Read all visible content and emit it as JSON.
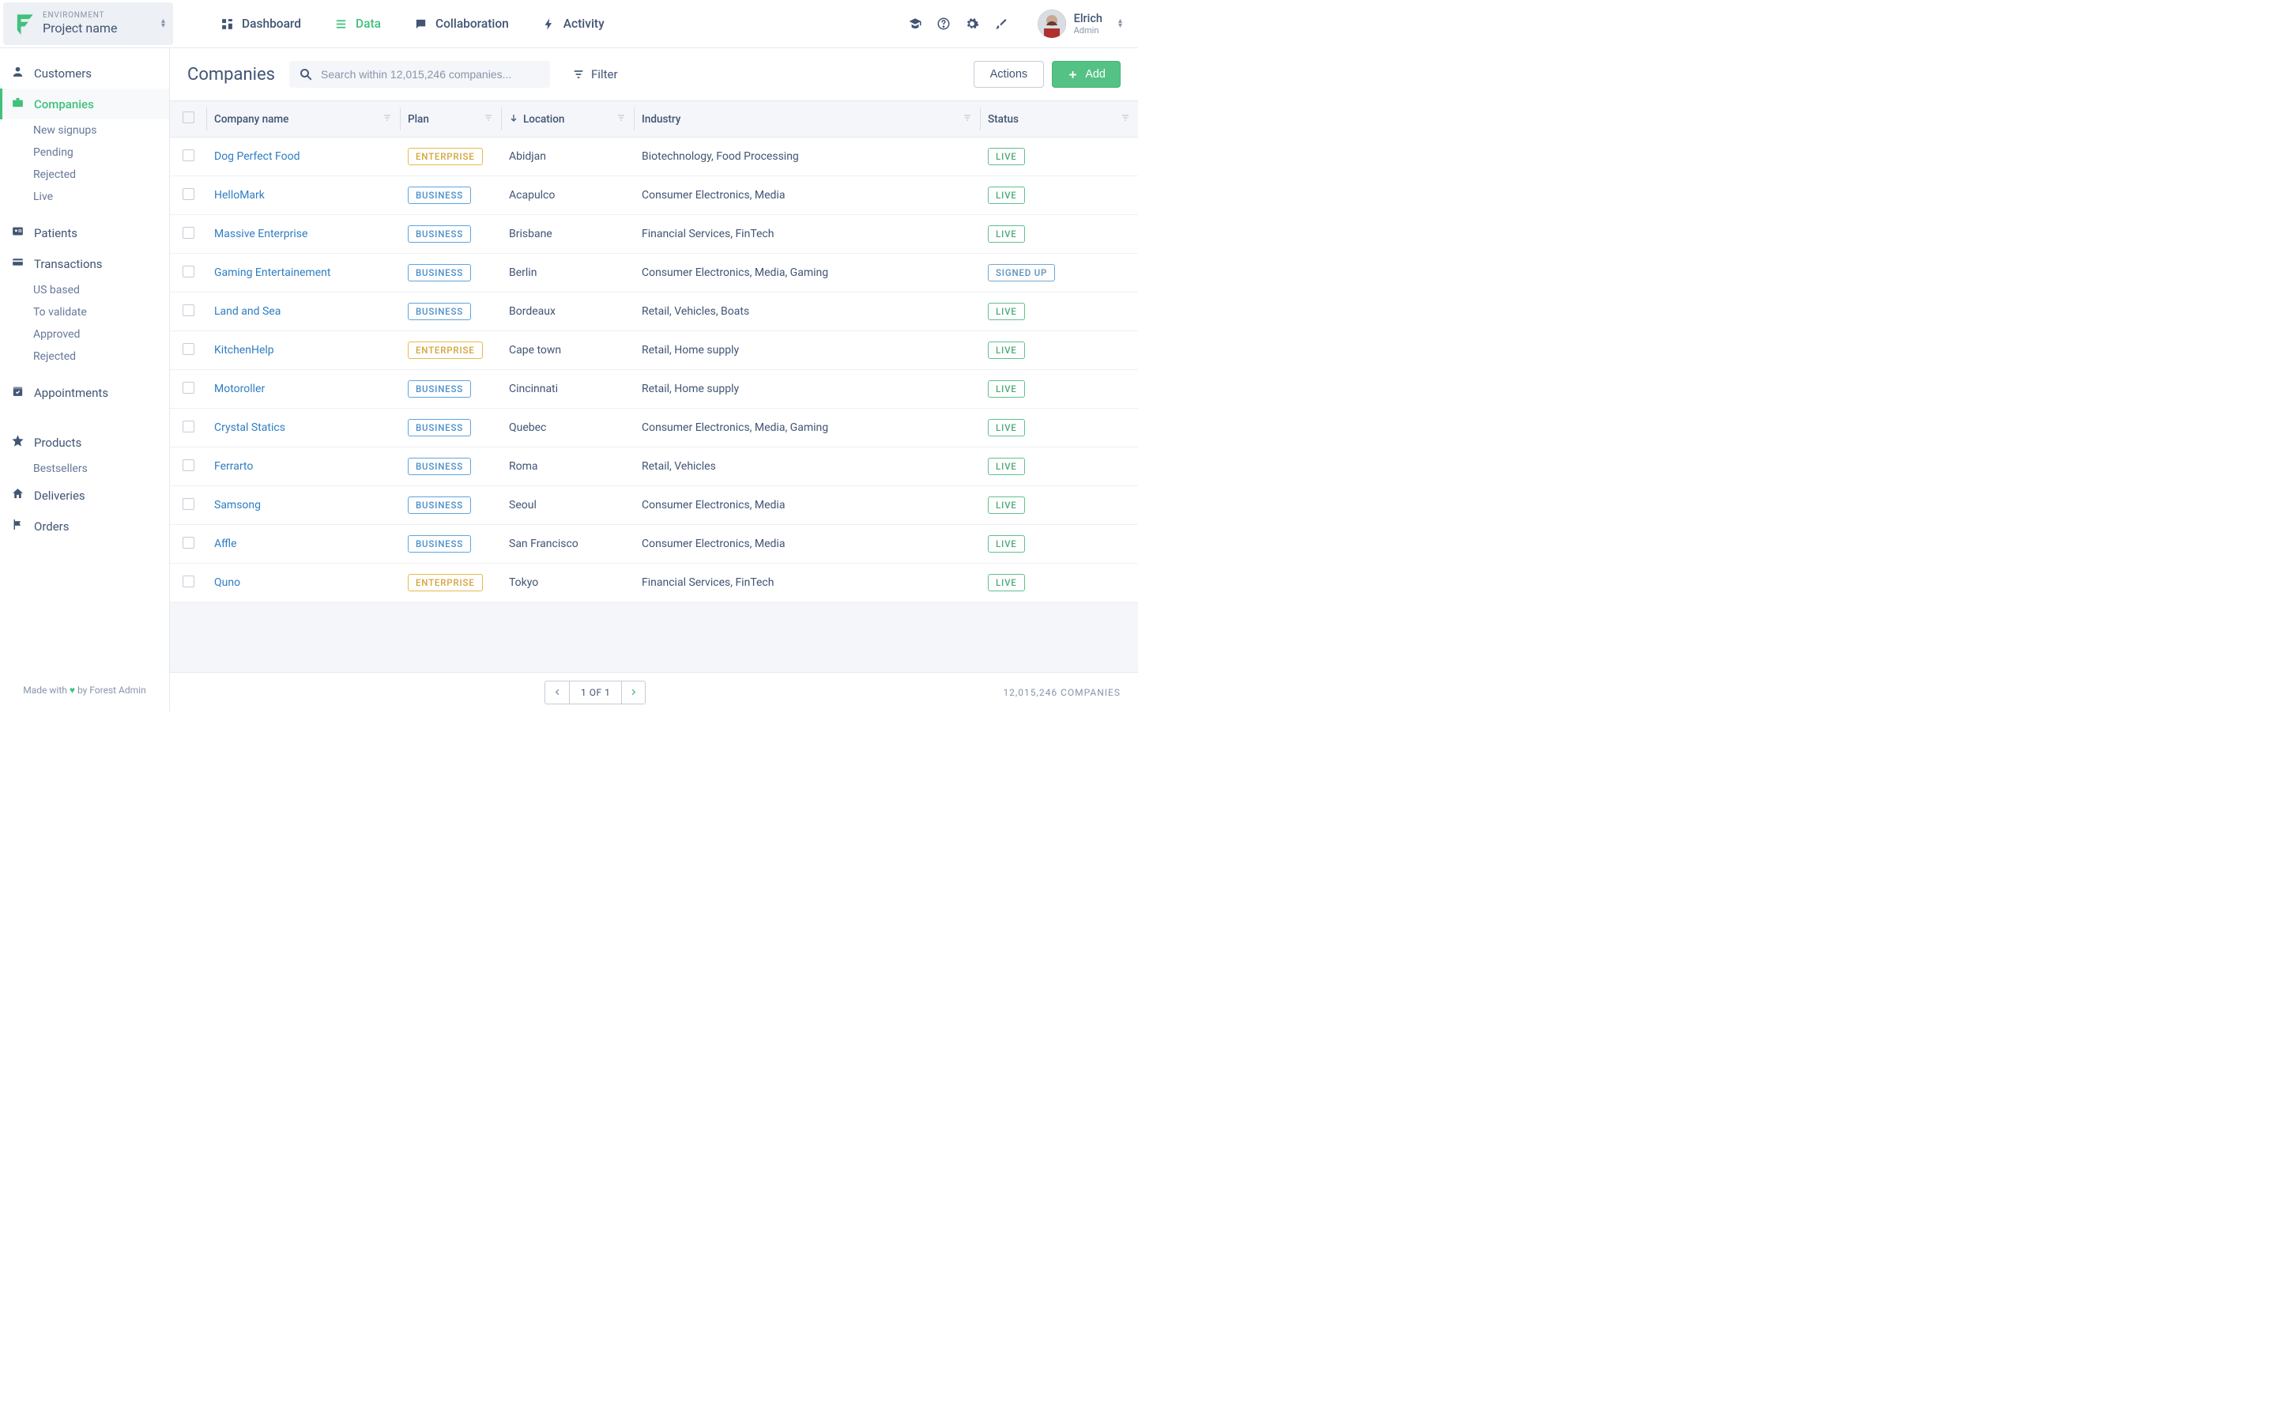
{
  "colors": {
    "accent_green": "#40c17b",
    "text_primary": "#415574",
    "text_muted": "#8795ab",
    "border": "#e4e8ee",
    "link_blue": "#2f7dc4",
    "badge_enterprise_border": "#e7b94e",
    "badge_enterprise_text": "#d4a33a",
    "badge_business_border": "#5da5e0",
    "badge_business_text": "#4a8fc9",
    "badge_live_border": "#61c08d",
    "badge_live_text": "#4bab78",
    "badge_signedup_border": "#6fa8d6",
    "badge_signedup_text": "#5a91be",
    "button_primary_bg": "#54c185"
  },
  "env": {
    "label": "ENVIRONMENT",
    "name": "Project name"
  },
  "nav": {
    "dashboard": "Dashboard",
    "data": "Data",
    "collaboration": "Collaboration",
    "activity": "Activity",
    "active": "data"
  },
  "user": {
    "name": "Elrich",
    "role": "Admin"
  },
  "sidebar": {
    "items": [
      {
        "icon": "person",
        "label": "Customers",
        "active": false,
        "subs": []
      },
      {
        "icon": "briefcase",
        "label": "Companies",
        "active": true,
        "subs": [
          "New signups",
          "Pending",
          "Rejected",
          "Live"
        ]
      },
      {
        "icon": "id-card",
        "label": "Patients",
        "active": false,
        "subs": []
      },
      {
        "icon": "credit-card",
        "label": "Transactions",
        "active": false,
        "subs": [
          "US based",
          "To validate",
          "Approved",
          "Rejected"
        ]
      },
      {
        "icon": "calendar-check",
        "label": "Appointments",
        "active": false,
        "subs": []
      },
      {
        "icon": "star",
        "label": "Products",
        "active": false,
        "subs": [
          "Bestsellers"
        ]
      },
      {
        "icon": "home",
        "label": "Deliveries",
        "active": false,
        "subs": []
      },
      {
        "icon": "flag",
        "label": "Orders",
        "active": false,
        "subs": []
      }
    ],
    "footer_prefix": "Made with ",
    "footer_suffix": " by Forest Admin"
  },
  "page": {
    "title": "Companies",
    "search_placeholder": "Search within 12,015,246 companies...",
    "filter_label": "Filter",
    "actions_label": "Actions",
    "add_label": "Add"
  },
  "table": {
    "columns": {
      "name": "Company name",
      "plan": "Plan",
      "location": "Location",
      "industry": "Industry",
      "status": "Status"
    },
    "sort_column": "location",
    "rows": [
      {
        "name": "Dog Perfect Food",
        "plan": "ENTERPRISE",
        "location": "Abidjan",
        "industry": "Biotechnology, Food Processing",
        "status": "LIVE"
      },
      {
        "name": "HelloMark",
        "plan": "BUSINESS",
        "location": "Acapulco",
        "industry": "Consumer Electronics, Media",
        "status": "LIVE"
      },
      {
        "name": "Massive Enterprise",
        "plan": "BUSINESS",
        "location": "Brisbane",
        "industry": "Financial Services, FinTech",
        "status": "LIVE"
      },
      {
        "name": "Gaming Entertainement",
        "plan": "BUSINESS",
        "location": "Berlin",
        "industry": "Consumer Electronics, Media, Gaming",
        "status": "SIGNED UP"
      },
      {
        "name": "Land and Sea",
        "plan": "BUSINESS",
        "location": "Bordeaux",
        "industry": "Retail, Vehicles, Boats",
        "status": "LIVE"
      },
      {
        "name": "KitchenHelp",
        "plan": "ENTERPRISE",
        "location": "Cape town",
        "industry": "Retail, Home supply",
        "status": "LIVE"
      },
      {
        "name": "Motoroller",
        "plan": "BUSINESS",
        "location": "Cincinnati",
        "industry": "Retail, Home supply",
        "status": "LIVE"
      },
      {
        "name": "Crystal Statics",
        "plan": "BUSINESS",
        "location": "Quebec",
        "industry": "Consumer Electronics, Media, Gaming",
        "status": "LIVE"
      },
      {
        "name": "Ferrarto",
        "plan": "BUSINESS",
        "location": "Roma",
        "industry": "Retail, Vehicles",
        "status": "LIVE"
      },
      {
        "name": "Samsong",
        "plan": "BUSINESS",
        "location": "Seoul",
        "industry": "Consumer Electronics, Media",
        "status": "LIVE"
      },
      {
        "name": "Affle",
        "plan": "BUSINESS",
        "location": "San Francisco",
        "industry": "Consumer Electronics, Media",
        "status": "LIVE"
      },
      {
        "name": "Quno",
        "plan": "ENTERPRISE",
        "location": "Tokyo",
        "industry": "Financial Services, FinTech",
        "status": "LIVE"
      }
    ]
  },
  "footer": {
    "pager_text": "1 OF 1",
    "count_text": "12,015,246 COMPANIES"
  }
}
